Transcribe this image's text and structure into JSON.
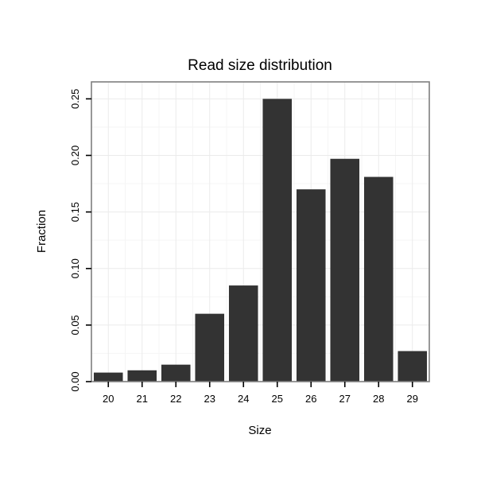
{
  "chart_data": {
    "type": "bar",
    "title": "Read size distribution",
    "xlabel": "Size",
    "ylabel": "Fraction",
    "categories": [
      "20",
      "21",
      "22",
      "23",
      "24",
      "25",
      "26",
      "27",
      "28",
      "29"
    ],
    "values": [
      0.008,
      0.01,
      0.015,
      0.06,
      0.085,
      0.25,
      0.17,
      0.197,
      0.181,
      0.027
    ],
    "ytick_values": [
      0.0,
      0.05,
      0.1,
      0.15,
      0.2,
      0.25
    ],
    "ytick_labels": [
      "0.00",
      "0.05",
      "0.10",
      "0.15",
      "0.20",
      "0.25"
    ],
    "ylim": [
      0,
      0.265
    ],
    "grid": true,
    "legend": "none",
    "colors": {
      "bar": "#333333",
      "panel_border": "#7f7f7f",
      "grid_major": "#ebebeb",
      "grid_minor": "#f5f5f5",
      "tick": "#000000",
      "background": "#ffffff"
    }
  }
}
